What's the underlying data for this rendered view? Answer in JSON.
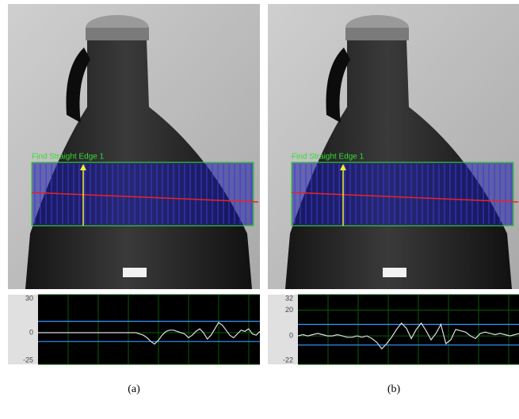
{
  "panels": [
    {
      "caption": "(a)",
      "roi_label": "Find Straight Edge 1",
      "plot": {
        "ylim": [
          -25,
          30
        ],
        "yticks": [
          -25,
          0,
          30
        ],
        "thresholds": [
          9,
          -7
        ],
        "values": [
          0,
          0,
          0,
          0,
          0,
          0,
          0,
          0,
          0,
          0,
          0,
          0,
          0,
          0,
          0,
          0,
          0,
          0,
          0,
          0,
          0,
          0,
          0,
          0,
          0,
          0,
          0,
          -1,
          -2,
          -4,
          -7,
          -9,
          -6,
          -2,
          1,
          2,
          2,
          1,
          0,
          -1,
          -4,
          -2,
          1,
          3,
          0,
          -5,
          -2,
          3,
          8,
          6,
          2,
          -2,
          -4,
          -1,
          2,
          1,
          3,
          -1,
          -2,
          1
        ]
      }
    },
    {
      "caption": "(b)",
      "roi_label": "Find Straight Edge 1",
      "plot": {
        "ylim": [
          -22,
          32
        ],
        "yticks": [
          -22,
          0,
          20,
          32
        ],
        "thresholds": [
          9,
          -7
        ],
        "values": [
          0,
          1,
          0,
          1,
          2,
          1,
          0,
          0,
          1,
          0,
          -1,
          -1,
          0,
          -1,
          0,
          -2,
          -5,
          -10,
          -6,
          -1,
          5,
          10,
          6,
          -2,
          5,
          10,
          4,
          -3,
          2,
          9,
          -6,
          -3,
          5,
          4,
          3,
          0,
          -2,
          2,
          3,
          2,
          1,
          2,
          1,
          0,
          1,
          2
        ]
      }
    }
  ]
}
